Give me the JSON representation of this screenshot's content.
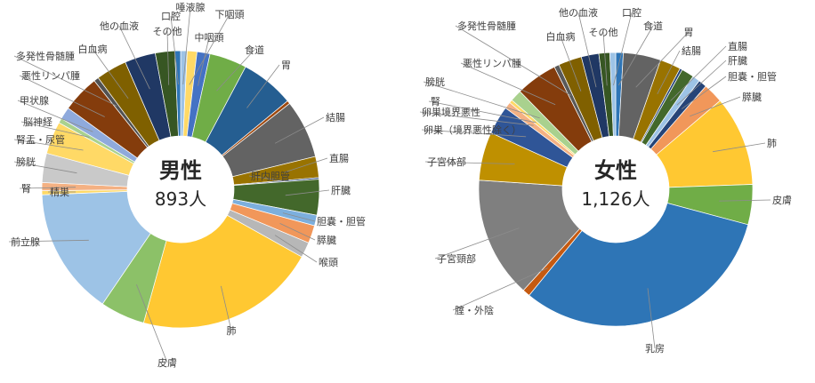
{
  "chart_data": [
    {
      "type": "pie",
      "center_title": "男性",
      "center_count": "893人",
      "slices": [
        {
          "label": "唾液腺",
          "value": 0.8,
          "color": "#9dc3e6"
        },
        {
          "label": "下咽頭",
          "value": 1.2,
          "color": "#ffd966"
        },
        {
          "label": "中咽頭",
          "value": 1.6,
          "color": "#4472c4"
        },
        {
          "label": "食道",
          "value": 4.6,
          "color": "#70ad47"
        },
        {
          "label": "胃",
          "value": 6.6,
          "color": "#255e91"
        },
        {
          "label": "",
          "value": 0.4,
          "color": "#9e480e"
        },
        {
          "label": "結腸",
          "value": 7.2,
          "color": "#636363"
        },
        {
          "label": "直腸",
          "value": 2.6,
          "color": "#997300"
        },
        {
          "label": "肝内胆管",
          "value": 0.2,
          "color": "#264478"
        },
        {
          "label": "肝臓",
          "value": 4.4,
          "color": "#43682b"
        },
        {
          "label": "胆嚢・胆管",
          "value": 1.3,
          "color": "#7cafdd"
        },
        {
          "label": "膵臓",
          "value": 2.2,
          "color": "#f1975a"
        },
        {
          "label": "喉頭",
          "value": 1.9,
          "color": "#b7b7b7"
        },
        {
          "label": "肺",
          "value": 22.4,
          "color": "#ffc832"
        },
        {
          "label": "皮膚",
          "value": 5.5,
          "color": "#8cc168"
        },
        {
          "label": "前立腺",
          "value": 15.7,
          "color": "#9dc3e6"
        },
        {
          "label": "精巣",
          "value": 0.5,
          "color": "#ffd966"
        },
        {
          "label": "腎",
          "value": 1.0,
          "color": "#f4b183"
        },
        {
          "label": "膀胱",
          "value": 3.6,
          "color": "#c9c9c9"
        },
        {
          "label": "腎盂・尿管",
          "value": 4.0,
          "color": "#ffd966"
        },
        {
          "label": "脳神経",
          "value": 0.6,
          "color": "#a9d18e"
        },
        {
          "label": "甲状腺",
          "value": 1.5,
          "color": "#8faadc"
        },
        {
          "label": "悪性リンパ腫",
          "value": 4.6,
          "color": "#843c0c"
        },
        {
          "label": "多発性骨髄腫",
          "value": 0.6,
          "color": "#525252"
        },
        {
          "label": "白血病",
          "value": 3.8,
          "color": "#7f6000"
        },
        {
          "label": "他の血液",
          "value": 3.8,
          "color": "#203864"
        },
        {
          "label": "その他",
          "value": 2.4,
          "color": "#375623"
        },
        {
          "label": "口腔",
          "value": 0.7,
          "color": "#2e75b6"
        }
      ]
    },
    {
      "type": "pie",
      "center_title": "女性",
      "center_count": "1,126人",
      "slices": [
        {
          "label": "食道",
          "value": 0.9,
          "color": "#2e75b6"
        },
        {
          "label": "胃",
          "value": 4.5,
          "color": "#636363"
        },
        {
          "label": "結腸",
          "value": 2.5,
          "color": "#997300"
        },
        {
          "label": "",
          "value": 0.3,
          "color": "#264478"
        },
        {
          "label": "直腸",
          "value": 1.5,
          "color": "#43682b"
        },
        {
          "label": "肝臓",
          "value": 0.9,
          "color": "#9dc3e6"
        },
        {
          "label": "胆嚢・胆管",
          "value": 1.0,
          "color": "#264478"
        },
        {
          "label": "膵臓",
          "value": 2.4,
          "color": "#f1975a"
        },
        {
          "label": "肺",
          "value": 10.8,
          "color": "#ffc832"
        },
        {
          "label": "皮膚",
          "value": 4.8,
          "color": "#70ad47"
        },
        {
          "label": "乳房",
          "value": 32.2,
          "color": "#2e75b6"
        },
        {
          "label": "腟・外陰",
          "value": 0.9,
          "color": "#c55a11"
        },
        {
          "label": "子宮頸部",
          "value": 14.5,
          "color": "#7f7f7f"
        },
        {
          "label": "子宮体部",
          "value": 5.8,
          "color": "#bf9000"
        },
        {
          "label": "卵巣（境界悪性除く）",
          "value": 3.4,
          "color": "#2f5597"
        },
        {
          "label": "卵巣境界悪性",
          "value": 0.8,
          "color": "#f4b183"
        },
        {
          "label": "腎",
          "value": 0.4,
          "color": "#ffd966"
        },
        {
          "label": "膀胱",
          "value": 1.4,
          "color": "#a9d18e"
        },
        {
          "label": "悪性リンパ腫",
          "value": 5.0,
          "color": "#843c0c"
        },
        {
          "label": "多発性骨髄腫",
          "value": 0.6,
          "color": "#595959"
        },
        {
          "label": "白血病",
          "value": 2.8,
          "color": "#806000"
        },
        {
          "label": "他の血液",
          "value": 2.1,
          "color": "#203864"
        },
        {
          "label": "その他",
          "value": 1.3,
          "color": "#375623"
        },
        {
          "label": "口腔",
          "value": 0.7,
          "color": "#9dc3e6"
        }
      ]
    }
  ]
}
